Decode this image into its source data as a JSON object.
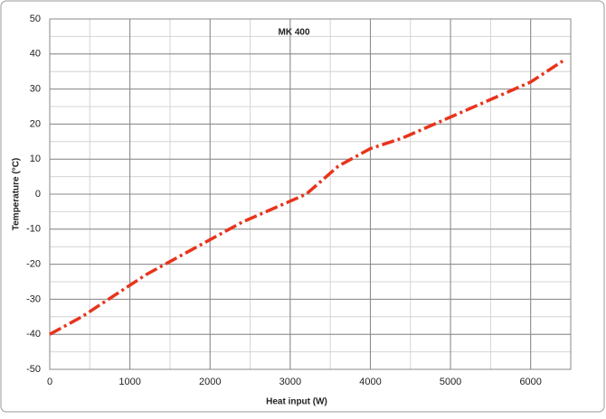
{
  "chart_data": {
    "type": "line",
    "title": "MK 400",
    "x_label": "Heat input (W)",
    "y_label": "Temperature (°C)",
    "x": [
      0,
      400,
      800,
      1200,
      1600,
      2000,
      2400,
      2800,
      3200,
      3600,
      4000,
      4400,
      4800,
      5200,
      5600,
      6000,
      6400
    ],
    "series": [
      {
        "name": "MK 400",
        "color": "#e8341c",
        "values": [
          -40,
          -35,
          -29,
          -23,
          -18,
          -13,
          -8,
          -4,
          0,
          8,
          13,
          16,
          20,
          24,
          28,
          32,
          38
        ]
      }
    ],
    "xlim": [
      0,
      6500
    ],
    "xticks": [
      0,
      1000,
      2000,
      3000,
      4000,
      5000,
      6000
    ],
    "ylim": [
      -50,
      50
    ],
    "yticks": [
      -50,
      -40,
      -30,
      -20,
      -10,
      0,
      10,
      20,
      30,
      40,
      50
    ],
    "grid": true,
    "minor_grid_step": {
      "x": 500,
      "y": 5
    }
  }
}
